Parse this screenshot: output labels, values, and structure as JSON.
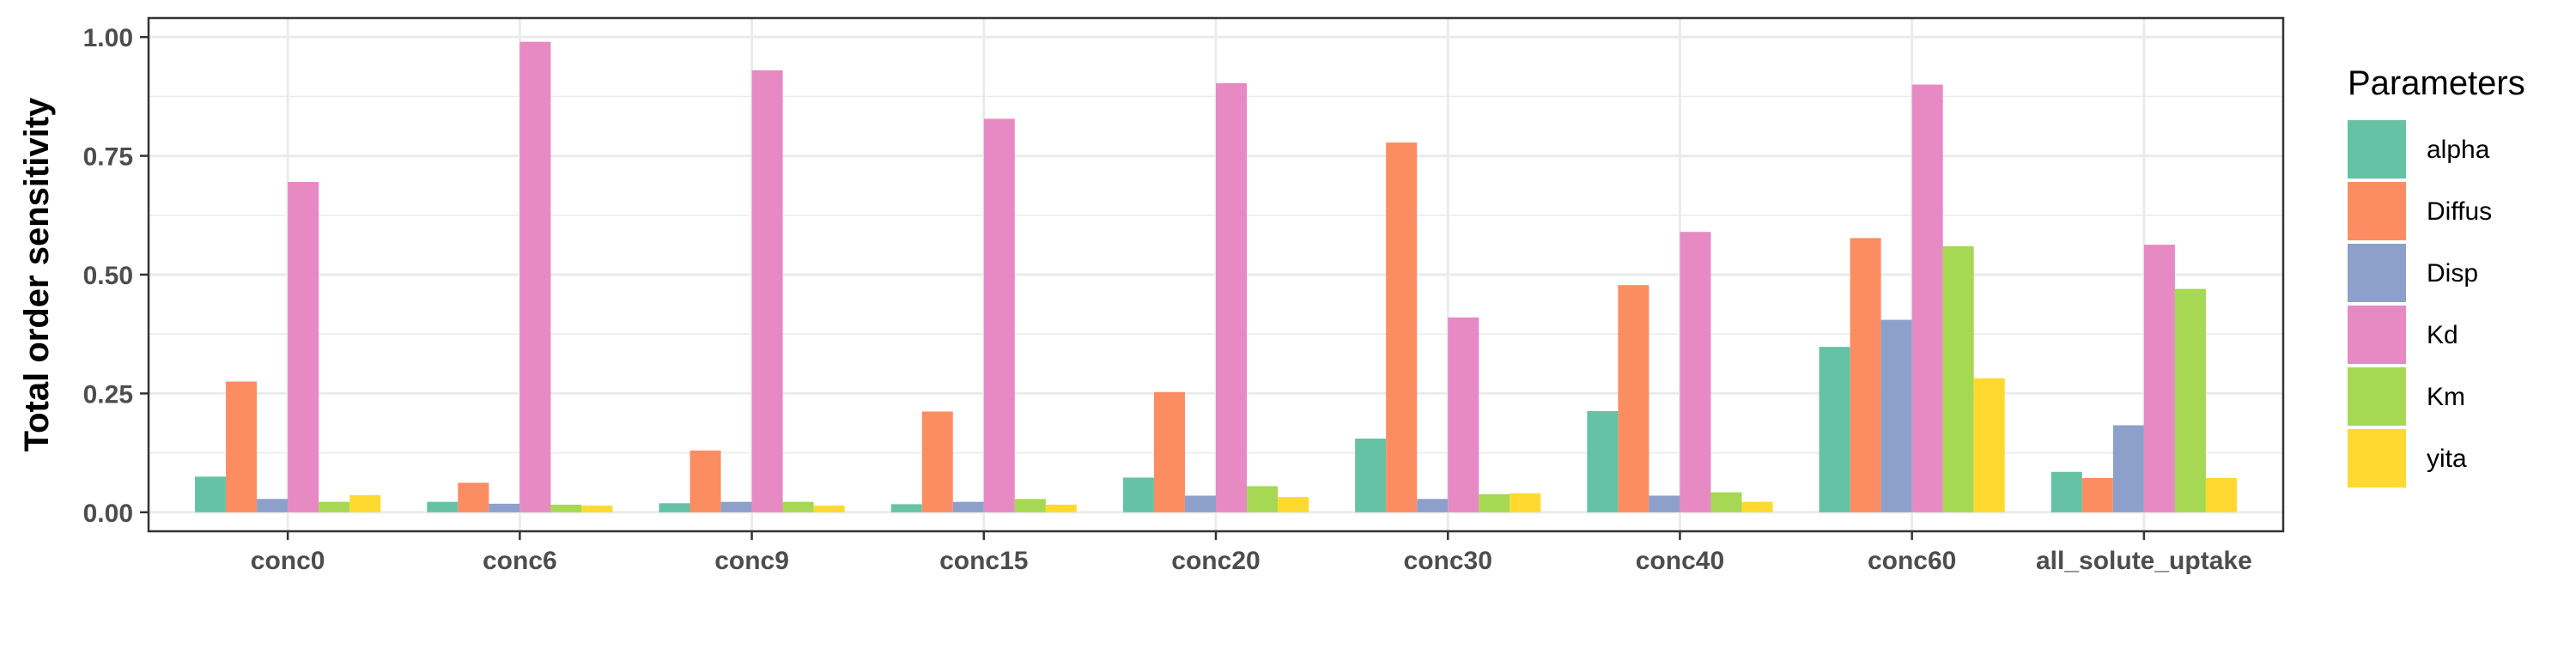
{
  "chart_data": {
    "type": "bar",
    "title": "",
    "xlabel": "",
    "ylabel": "Total order sensitivity",
    "ylim": [
      -0.04,
      1.04
    ],
    "yticks": [
      "0.00",
      "0.25",
      "0.50",
      "0.75",
      "1.00"
    ],
    "grid": true,
    "legend_position": "right",
    "legend_title": "Parameters",
    "categories": [
      "conc0",
      "conc6",
      "conc9",
      "conc15",
      "conc20",
      "conc30",
      "conc40",
      "conc60",
      "all_solute_uptake"
    ],
    "series": [
      {
        "name": "alpha",
        "color": "#66c2a5",
        "values": [
          0.075,
          0.022,
          0.019,
          0.017,
          0.073,
          0.155,
          0.213,
          0.348,
          0.085
        ]
      },
      {
        "name": "Diffus",
        "color": "#fc8d62",
        "values": [
          0.275,
          0.062,
          0.13,
          0.212,
          0.253,
          0.778,
          0.478,
          0.577,
          0.072
        ]
      },
      {
        "name": "Disp",
        "color": "#8da0cb",
        "values": [
          0.028,
          0.018,
          0.022,
          0.022,
          0.035,
          0.028,
          0.035,
          0.405,
          0.183
        ]
      },
      {
        "name": "Kd",
        "color": "#e78ac3",
        "values": [
          0.695,
          0.99,
          0.93,
          0.828,
          0.903,
          0.41,
          0.59,
          0.9,
          0.563
        ]
      },
      {
        "name": "Km",
        "color": "#a6d854",
        "values": [
          0.022,
          0.016,
          0.022,
          0.028,
          0.055,
          0.038,
          0.042,
          0.56,
          0.47
        ]
      },
      {
        "name": "yita",
        "color": "#ffd92f",
        "values": [
          0.036,
          0.014,
          0.014,
          0.016,
          0.032,
          0.04,
          0.022,
          0.282,
          0.072
        ]
      }
    ]
  }
}
